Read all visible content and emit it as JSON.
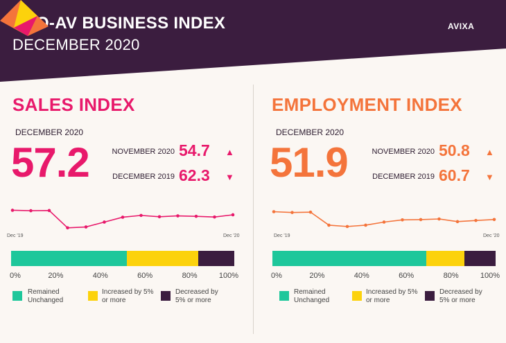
{
  "header": {
    "title": "PRO-AV BUSINESS INDEX",
    "subtitle": "DECEMBER 2020",
    "logo_text": "AVIXA"
  },
  "colors": {
    "header_bg": "#3b1d3f",
    "sales_accent": "#e8196b",
    "employment_accent": "#f4743b",
    "remained": "#1ec79b",
    "increased": "#fcd20c",
    "decreased": "#3b1d3f"
  },
  "legend": {
    "remained": "Remained Unchanged",
    "increased": "Increased by 5% or more",
    "decreased": "Decreased by 5% or more"
  },
  "percent_ticks": [
    "0%",
    "20%",
    "40%",
    "60%",
    "80%",
    "100%"
  ],
  "sales": {
    "title": "SALES INDEX",
    "current_label": "DECEMBER 2020",
    "current_value": "57.2",
    "prev_month_label": "NOVEMBER 2020",
    "prev_month_value": "54.7",
    "prev_month_arrow": "▲",
    "prev_year_label": "DECEMBER 2019",
    "prev_year_value": "62.3",
    "prev_year_arrow": "▼",
    "spark_start": "Dec '19",
    "spark_end": "Dec '20"
  },
  "employment": {
    "title": "EMPLOYMENT INDEX",
    "current_label": "DECEMBER 2020",
    "current_value": "51.9",
    "prev_month_label": "NOVEMBER 2020",
    "prev_month_value": "50.8",
    "prev_month_arrow": "▲",
    "prev_year_label": "DECEMBER 2019",
    "prev_year_value": "60.7",
    "prev_year_arrow": "▼",
    "spark_start": "Dec '19",
    "spark_end": "Dec '20"
  },
  "chart_data": [
    {
      "type": "line",
      "x": [
        "Dec '19",
        "",
        "",
        "",
        "",
        "",
        "",
        "",
        "",
        "",
        "",
        "",
        "Dec '20"
      ],
      "values": [
        62.3,
        61.8,
        62.0,
        42.5,
        43.5,
        49.0,
        54.5,
        56.5,
        55.0,
        56.0,
        55.5,
        54.7,
        57.2
      ]
    },
    {
      "type": "bar",
      "stacked": true,
      "categories": [
        "Remained Unchanged",
        "Increased by 5% or more",
        "Decreased by 5% or more"
      ],
      "values": [
        52,
        32,
        16
      ],
      "xlim": [
        0,
        100
      ]
    },
    {
      "type": "line",
      "x": [
        "Dec '19",
        "",
        "",
        "",
        "",
        "",
        "",
        "",
        "",
        "",
        "",
        "",
        "Dec '20"
      ],
      "values": [
        60.7,
        59.8,
        60.2,
        45.5,
        44.0,
        45.5,
        49.0,
        51.5,
        51.8,
        52.5,
        49.5,
        50.8,
        51.9
      ]
    },
    {
      "type": "bar",
      "stacked": true,
      "categories": [
        "Remained Unchanged",
        "Increased by 5% or more",
        "Decreased by 5% or more"
      ],
      "values": [
        69,
        17,
        14
      ],
      "xlim": [
        0,
        100
      ]
    }
  ]
}
